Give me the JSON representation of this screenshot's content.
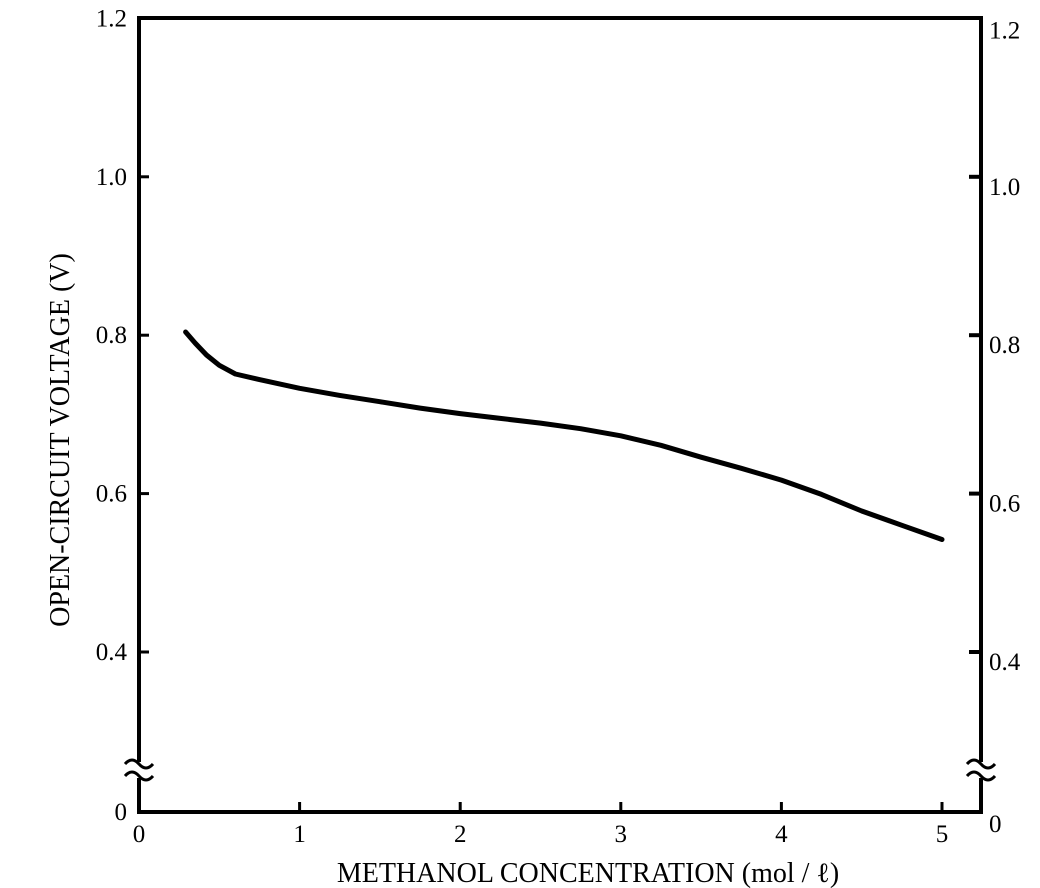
{
  "chart_data": {
    "type": "line",
    "xlabel": "METHANOL CONCENTRATION (mol / ℓ)",
    "ylabel": "OPEN-CIRCUIT VOLTAGE (V)",
    "xlim": [
      0,
      5.25
    ],
    "ylim": [
      0,
      1.2
    ],
    "y_axis_break": true,
    "y_break_between": [
      0,
      0.4
    ],
    "x_ticks": [
      0,
      1,
      2,
      3,
      4,
      5
    ],
    "x_tick_labels": [
      "0",
      "1",
      "2",
      "3",
      "4",
      "5"
    ],
    "y_ticks_left": [
      0,
      0.4,
      0.6,
      0.8,
      1.0,
      1.2
    ],
    "y_tick_labels_left": [
      "0",
      "0.4",
      "0.6",
      "0.8",
      "1.0",
      "1.2"
    ],
    "y_ticks_right": [
      0,
      0.4,
      0.6,
      0.8,
      1.0,
      1.2
    ],
    "y_tick_labels_right": [
      "0",
      "0.4",
      "0.6",
      "0.8",
      "1.0",
      "1.2"
    ],
    "grid": false,
    "legend": "none",
    "series": [
      {
        "color": "#000000",
        "x": [
          0.29,
          0.35,
          0.42,
          0.5,
          0.6,
          0.75,
          1.0,
          1.25,
          1.5,
          1.75,
          2.0,
          2.25,
          2.5,
          2.75,
          3.0,
          3.25,
          3.5,
          3.75,
          4.0,
          4.25,
          4.5,
          4.75,
          5.0
        ],
        "y": [
          0.804,
          0.79,
          0.775,
          0.762,
          0.751,
          0.744,
          0.733,
          0.724,
          0.716,
          0.708,
          0.701,
          0.695,
          0.689,
          0.682,
          0.673,
          0.661,
          0.646,
          0.632,
          0.617,
          0.599,
          0.578,
          0.56,
          0.542
        ]
      }
    ]
  }
}
